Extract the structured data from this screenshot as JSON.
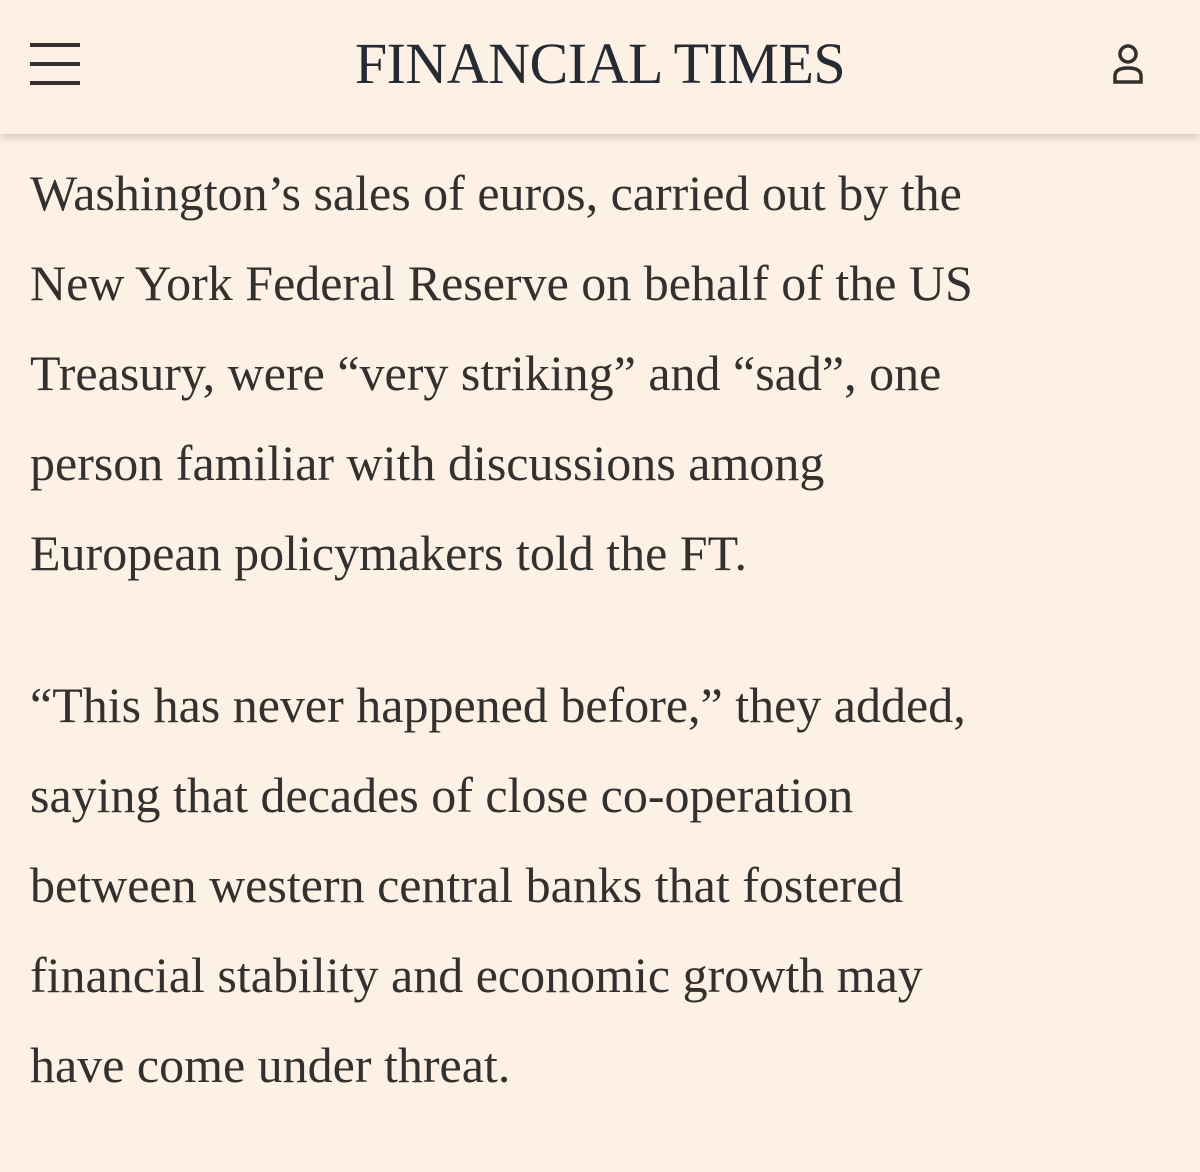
{
  "header": {
    "title": "FINANCIAL TIMES"
  },
  "article": {
    "paragraphs": [
      [
        "Washington’s sales of euros, carried out by the",
        "New York Federal Reserve on behalf of the US",
        "Treasury, were “very striking” and “sad”, one",
        "person familiar with discussions among",
        "European policymakers told the FT."
      ],
      [
        "“This has never happened before,” they added,",
        "saying that decades of close co-operation",
        "between western central banks that fostered",
        "financial stability and economic growth may",
        "have come under threat."
      ]
    ]
  }
}
